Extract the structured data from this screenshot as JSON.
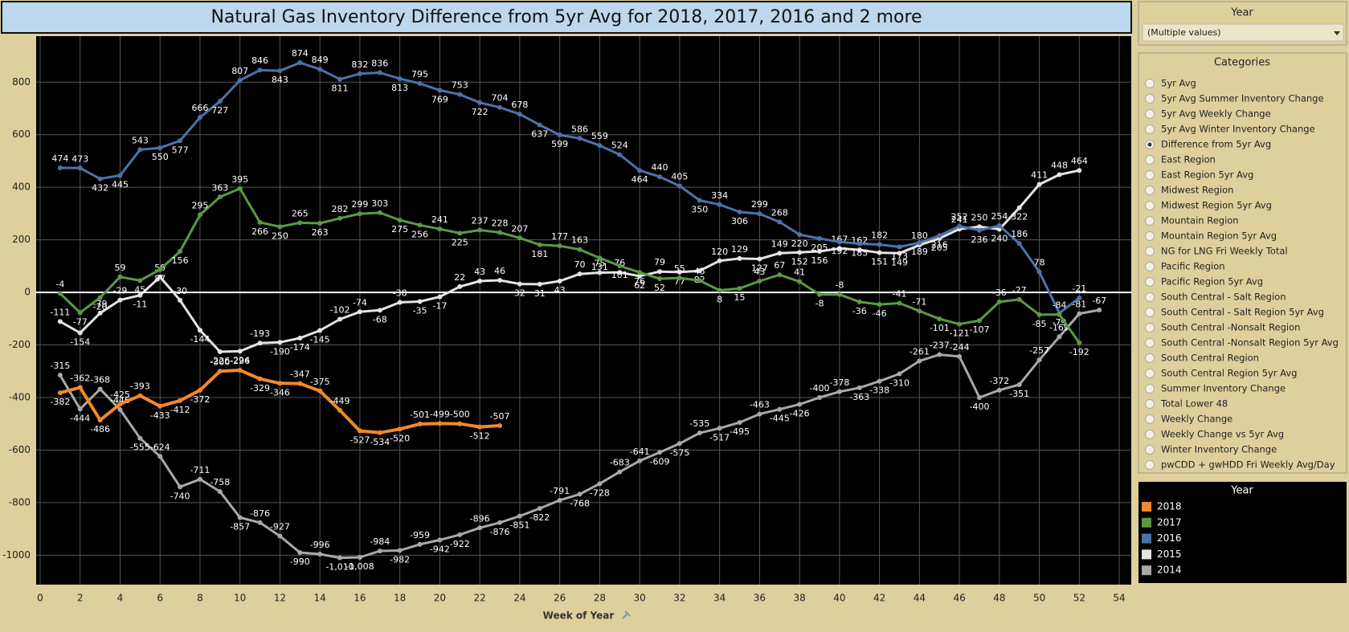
{
  "chart_data": {
    "type": "line",
    "title": "Natural Gas Inventory Difference from 5yr Avg for 2018, 2017, 2016 and 2 more",
    "xlabel": "Week of Year",
    "legend_title": "Year",
    "x": [
      1,
      2,
      3,
      4,
      5,
      6,
      7,
      8,
      9,
      10,
      11,
      12,
      13,
      14,
      15,
      16,
      17,
      18,
      19,
      20,
      21,
      22,
      23,
      24,
      25,
      26,
      27,
      28,
      29,
      30,
      31,
      32,
      33,
      34,
      35,
      36,
      37,
      38,
      39,
      40,
      41,
      42,
      43,
      44,
      45,
      46,
      47,
      48,
      49,
      50,
      51,
      52,
      53
    ],
    "xlim": [
      -0.2,
      54.6
    ],
    "xticks": [
      0,
      2,
      4,
      6,
      8,
      10,
      12,
      14,
      16,
      18,
      20,
      22,
      24,
      26,
      28,
      30,
      32,
      34,
      36,
      38,
      40,
      42,
      44,
      46,
      48,
      50,
      52,
      54
    ],
    "ylim": [
      -1112,
      975
    ],
    "yticks": [
      {
        "value": -1000,
        "label": "-1000"
      },
      -800,
      -600,
      -400,
      -200,
      0,
      200,
      400,
      600,
      800
    ],
    "grid": true,
    "series": [
      {
        "name": "2018",
        "color": "#f0892b",
        "values": [
          -382,
          -362,
          -486,
          -425,
          -393,
          -433,
          -412,
          -372,
          -300,
          -296,
          -329,
          -346,
          -347,
          -375,
          -449,
          -527,
          -534,
          -520,
          -501,
          -499,
          -500,
          -512,
          -507,
          null,
          null,
          null,
          null,
          null,
          null,
          null,
          null,
          null,
          null,
          null,
          null,
          null,
          null,
          null,
          null,
          null,
          null,
          null,
          null,
          null,
          null,
          null,
          null,
          null,
          null,
          null,
          null,
          null,
          null
        ]
      },
      {
        "name": "2017",
        "color": "#5a9a44",
        "values": [
          -4,
          -77,
          -20,
          59,
          45,
          87,
          156,
          295,
          363,
          395,
          266,
          250,
          265,
          263,
          282,
          299,
          303,
          275,
          256,
          241,
          225,
          237,
          228,
          207,
          181,
          177,
          163,
          131,
          101,
          76,
          52,
          55,
          45,
          8,
          15,
          43,
          67,
          41,
          -8,
          -8,
          -36,
          -46,
          -41,
          -71,
          -101,
          -121,
          -107,
          -36,
          -27,
          -85,
          -84,
          -192,
          null
        ]
      },
      {
        "name": "2016",
        "color": "#4a74a8",
        "values": [
          474,
          473,
          432,
          445,
          543,
          550,
          577,
          666,
          727,
          807,
          846,
          843,
          874,
          849,
          811,
          832,
          836,
          813,
          795,
          769,
          753,
          722,
          704,
          678,
          637,
          599,
          586,
          559,
          524,
          464,
          440,
          405,
          350,
          334,
          306,
          299,
          268,
          220,
          205,
          192,
          185,
          182,
          173,
          189,
          216,
          252,
          236,
          254,
          186,
          78,
          -79,
          -21,
          null
        ]
      },
      {
        "name": "2015",
        "color": "#e4e4e4",
        "values": [
          -111,
          -154,
          -79,
          -29,
          -11,
          59,
          -30,
          -144,
          -226,
          -224,
          -193,
          -190,
          -174,
          -145,
          -102,
          -74,
          -68,
          -38,
          -35,
          -17,
          22,
          43,
          46,
          32,
          31,
          43,
          70,
          75,
          76,
          62,
          79,
          77,
          82,
          120,
          129,
          127,
          149,
          152,
          156,
          167,
          162,
          151,
          149,
          180,
          205,
          241,
          250,
          240,
          322,
          411,
          448,
          464,
          null
        ]
      },
      {
        "name": "2014",
        "color": "#a9a9a9",
        "values": [
          -315,
          -444,
          -368,
          -446,
          -555,
          -624,
          -740,
          -711,
          -758,
          -857,
          -876,
          -927,
          -990,
          -996,
          -1010,
          -1008,
          -984,
          -982,
          -959,
          -942,
          -922,
          -896,
          -876,
          -851,
          -822,
          -791,
          -768,
          -728,
          -683,
          -641,
          -609,
          -575,
          -535,
          -517,
          -495,
          -463,
          -445,
          -426,
          -400,
          -378,
          -363,
          -338,
          -310,
          -261,
          -237,
          -244,
          -400,
          -372,
          -351,
          -257,
          -169,
          -81,
          -67
        ],
        "value_labels": [
          "-315",
          "-444",
          "-368",
          "-446",
          "-555",
          "-624",
          "-740",
          "-711",
          "-758",
          "-857",
          "-876",
          "-927",
          "-990",
          "-996",
          "-1,010",
          "-1,008",
          "-984",
          "-982",
          "-959",
          "-942",
          "-922",
          "-896",
          "-876",
          "-851",
          "-822",
          "-791",
          "-768",
          "-728",
          "-683",
          "-641",
          "-609",
          "-575",
          "-535",
          "-517",
          "-495",
          "-463",
          "-445",
          "-426",
          "-400",
          "-378",
          "-363",
          "-338",
          "-310",
          "-261",
          "-237",
          "-244",
          "-400",
          "-372",
          "-351",
          "-257",
          "-169",
          "-81",
          "-67"
        ]
      }
    ]
  },
  "year_filter": {
    "title": "Year",
    "value": "(Multiple values)"
  },
  "categories_filter": {
    "title": "Categories",
    "selected": 4,
    "options": [
      "5yr Avg",
      "5yr Avg Summer Inventory Change",
      "5yr Avg Weekly Change",
      "5yr Avg Winter Inventory Change",
      "Difference from 5yr Avg",
      "East Region",
      "East Region 5yr Avg",
      "Midwest Region",
      "Midwest Region 5yr Avg",
      "Mountain Region",
      "Mountain Region 5yr Avg",
      "NG for LNG Fri Weekly Total",
      "Pacific Region",
      "Pacific Region 5yr Avg",
      "South Central - Salt Region",
      "South Central - Salt Region 5yr Avg",
      "South Central -Nonsalt Region",
      "South Central -Nonsalt Region 5yr Avg",
      "South Central Region",
      "South Central Region 5yr Avg",
      "Summer Inventory Change",
      "Total Lower 48",
      "Weekly Change",
      "Weekly Change vs 5yr Avg",
      "Winter Inventory Change",
      "pwCDD + gwHDD Fri Weekly Avg/Day"
    ]
  }
}
